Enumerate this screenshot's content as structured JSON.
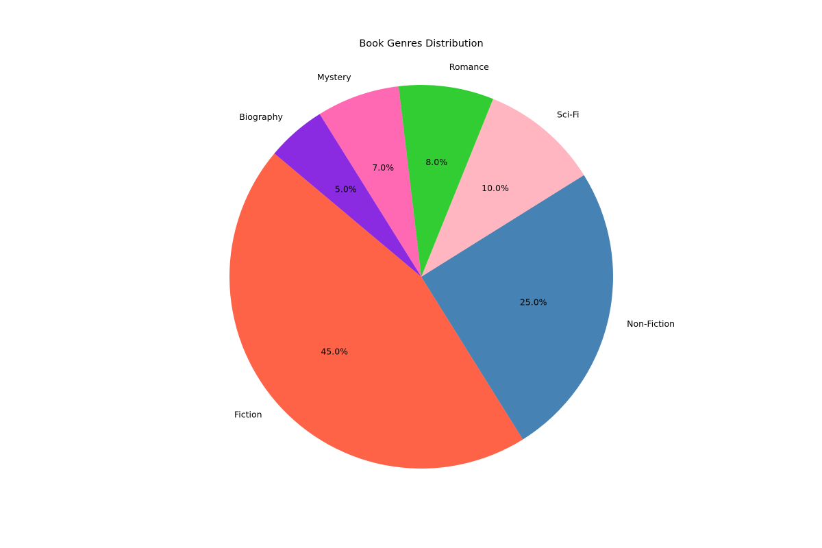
{
  "chart_data": {
    "type": "pie",
    "title": "Book Genres Distribution",
    "categories": [
      "Fiction",
      "Non-Fiction",
      "Sci-Fi",
      "Romance",
      "Mystery",
      "Biography"
    ],
    "values": [
      45.0,
      25.0,
      10.0,
      8.0,
      7.0,
      5.0
    ],
    "value_labels": [
      "45.0%",
      "25.0%",
      "10.0%",
      "8.0%",
      "7.0%",
      "5.0%"
    ],
    "colors": [
      "#ff6347",
      "#4682b4",
      "#ffb6c1",
      "#32cd32",
      "#ff69b4",
      "#8a2be2"
    ],
    "start_angle_deg": 140,
    "direction": "counterclockwise",
    "legend": "none"
  }
}
